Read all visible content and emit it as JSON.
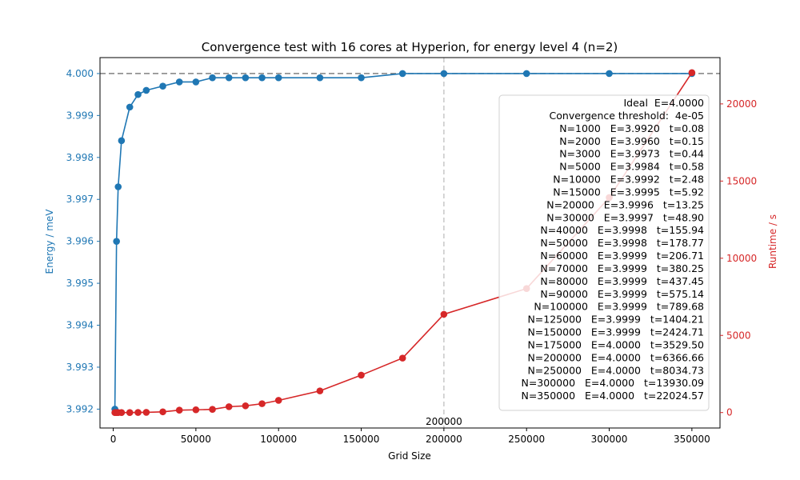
{
  "chart_data": {
    "type": "line",
    "title": "Convergence test with 16 cores at Hyperion, for energy level 4 (n=2)",
    "xlabel": "Grid Size",
    "ylabel_left": "Energy / meV",
    "ylabel_right": "Runtime / s",
    "xlim": [
      -8000,
      367000
    ],
    "ylim_left": [
      3.99155,
      4.00038
    ],
    "ylim_right": [
      -1000,
      23000
    ],
    "x_ticks": [
      0,
      50000,
      100000,
      150000,
      200000,
      250000,
      300000,
      350000
    ],
    "y_left_ticks": [
      3.992,
      3.993,
      3.994,
      3.995,
      3.996,
      3.997,
      3.998,
      3.999,
      4.0
    ],
    "y_left_tick_labels": [
      "3.992",
      "3.993",
      "3.994",
      "3.995",
      "3.996",
      "3.997",
      "3.998",
      "3.999",
      "4.000"
    ],
    "y_right_ticks": [
      0,
      5000,
      10000,
      15000,
      20000
    ],
    "grid": false,
    "legend": "right",
    "colors": {
      "energy": "#1f77b4",
      "runtime": "#d62728",
      "reference": "#808080",
      "marker_line": "#c8c8c8"
    },
    "x": [
      1000,
      2000,
      3000,
      5000,
      10000,
      15000,
      20000,
      30000,
      40000,
      50000,
      60000,
      70000,
      80000,
      90000,
      100000,
      125000,
      150000,
      175000,
      200000,
      250000,
      300000,
      350000
    ],
    "series": [
      {
        "values": [
          3.992,
          3.996,
          3.9973,
          3.9984,
          3.9992,
          3.9995,
          3.9996,
          3.9997,
          3.9998,
          3.9998,
          3.9999,
          3.9999,
          3.9999,
          3.9999,
          3.9999,
          3.9999,
          3.9999,
          4.0,
          4.0,
          4.0,
          4.0,
          4.0
        ]
      },
      {
        "values": [
          0.08,
          0.15,
          0.44,
          0.58,
          2.48,
          5.92,
          13.25,
          48.9,
          155.94,
          178.77,
          206.71,
          380.25,
          437.45,
          575.14,
          789.68,
          1404.21,
          2424.71,
          3529.5,
          6366.66,
          8034.73,
          13930.09,
          22024.57
        ]
      }
    ],
    "reference_line": {
      "y": 4.0
    },
    "vertical_marker": {
      "x": 200000,
      "label": "200000"
    },
    "annotation_lines": [
      "Ideal  E=4.0000",
      "Convergence threshold:  4e-05",
      "N=1000   E=3.9920   t=0.08",
      "N=2000   E=3.9960   t=0.15",
      "N=3000   E=3.9973   t=0.44",
      "N=5000   E=3.9984   t=0.58",
      "N=10000   E=3.9992   t=2.48",
      "N=15000   E=3.9995   t=5.92",
      "N=20000   E=3.9996   t=13.25",
      "N=30000   E=3.9997   t=48.90",
      "N=40000   E=3.9998   t=155.94",
      "N=50000   E=3.9998   t=178.77",
      "N=60000   E=3.9999   t=206.71",
      "N=70000   E=3.9999   t=380.25",
      "N=80000   E=3.9999   t=437.45",
      "N=90000   E=3.9999   t=575.14",
      "N=100000   E=3.9999   t=789.68",
      "N=125000   E=3.9999   t=1404.21",
      "N=150000   E=3.9999   t=2424.71",
      "N=175000   E=4.0000   t=3529.50",
      "N=200000   E=4.0000   t=6366.66",
      "N=250000   E=4.0000   t=8034.73",
      "N=300000   E=4.0000   t=13930.09",
      "N=350000   E=4.0000   t=22024.57"
    ]
  }
}
